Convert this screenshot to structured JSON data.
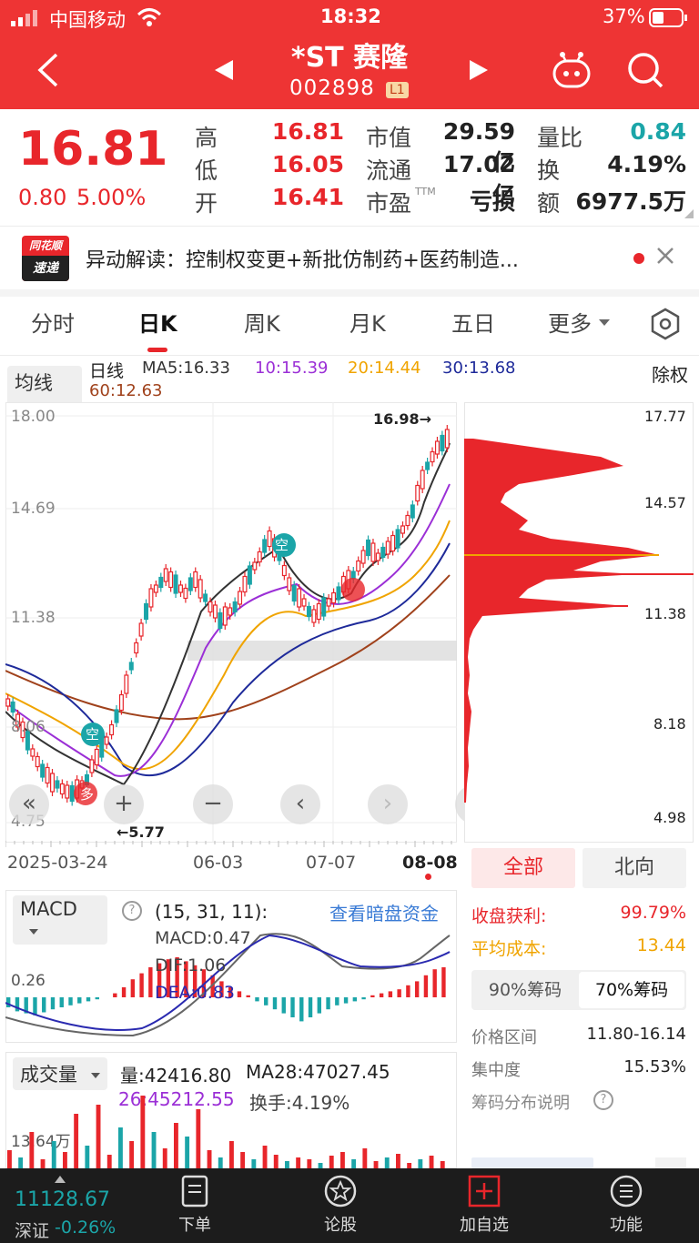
{
  "status_bar": {
    "carrier": "中国移动",
    "time": "18:32",
    "battery": "37%"
  },
  "header": {
    "name": "*ST 赛隆",
    "code": "002898",
    "level_badge": "L1"
  },
  "quote": {
    "price": "16.81",
    "change": "0.80",
    "change_pct": "5.00%",
    "rows": [
      {
        "l1": "高",
        "v1": "16.81",
        "l2": "市值",
        "v2": "29.59亿",
        "l3": "量比",
        "v3": "0.84"
      },
      {
        "l1": "低",
        "v1": "16.05",
        "l2": "流通",
        "v2": "17.02亿",
        "l3": "换",
        "v3": "4.19%"
      },
      {
        "l1": "开",
        "v1": "16.41",
        "l2": "市盈",
        "sup": "TTM",
        "v2": "亏损",
        "l3": "额",
        "v3": "6977.5万"
      }
    ]
  },
  "news": {
    "logo_top": "同花顺",
    "logo_bottom": "速递",
    "text": "异动解读：控制权变更+新批仿制药+医药制造..."
  },
  "tabs": [
    "分时",
    "日K",
    "周K",
    "月K",
    "五日",
    "更多"
  ],
  "ma_legend": {
    "selector": "均线",
    "prefix": "日线",
    "ma5": "MA5:16.33",
    "ma10": "10:15.39",
    "ma20": "20:14.44",
    "ma30": "30:13.68",
    "ma60": "60:12.63",
    "adjust": "除权"
  },
  "kline": {
    "y_ticks": [
      "18.00",
      "14.69",
      "11.38",
      "8.06",
      "4.75"
    ],
    "x_ticks": [
      "2025-03-24",
      "06-03",
      "07-07",
      "08-08"
    ],
    "high_marker": "16.98→",
    "low_marker": "←5.77",
    "signal_short": "空",
    "signal_long": "多"
  },
  "chips": {
    "y_ticks": [
      "17.77",
      "14.57",
      "11.38",
      "8.18",
      "4.98"
    ],
    "btn_all": "全部",
    "btn_north": "北向",
    "profit_label": "收盘获利:",
    "profit": "99.79%",
    "cost_label": "平均成本:",
    "cost": "13.44",
    "tab90": "90%筹码",
    "tab70": "70%筹码",
    "range_label": "价格区间",
    "range": "11.80-16.14",
    "conc_label": "集中度",
    "conc": "15.53%",
    "help": "筹码分布说明"
  },
  "macd": {
    "selector": "MACD",
    "params": "(15, 31, 11):",
    "link": "查看暗盘资金",
    "macd": "MACD:0.47",
    "dif": "DIF:1.06",
    "dea": "DEA:0.83",
    "y_tick": "0.26"
  },
  "volume": {
    "selector": "成交量",
    "vol": "量:42416.80",
    "ma28": "MA28:47027.45",
    "ma26": "26:45212.55",
    "turnover": "换手:4.19%",
    "y_tick": "13.64万"
  },
  "bottom_nav": {
    "index_value": "11128.67",
    "index_name": "深证",
    "index_change": "-0.26%",
    "items": [
      "下单",
      "论股",
      "加自选",
      "功能"
    ]
  },
  "colors": {
    "brand_red": "#ee3434",
    "up": "#e8262b",
    "down": "#1ba5a8",
    "ma5": "#333333",
    "ma10": "#9b2fd6",
    "ma20": "#f0a400",
    "ma30": "#1e2a9a",
    "ma60": "#a0421c"
  }
}
